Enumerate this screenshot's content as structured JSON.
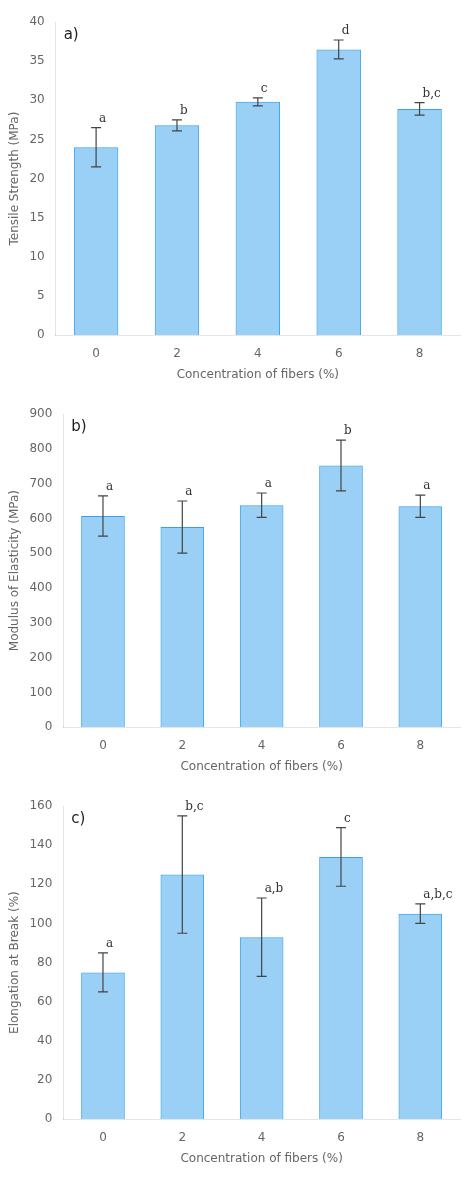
{
  "chart_data": [
    {
      "type": "bar",
      "title": "a)",
      "categories": [
        0,
        2,
        4,
        6,
        8
      ],
      "values": [
        24.0,
        26.8,
        29.8,
        36.5,
        28.9
      ],
      "errors": [
        2.5,
        0.7,
        0.5,
        1.2,
        0.8
      ],
      "annotations": [
        "a",
        "b",
        "c",
        "d",
        "b,c"
      ],
      "x_label": "Concentration of fibers (%)",
      "y_label": "Tensile Strength (MPa)",
      "ylim": [
        0,
        40
      ],
      "yticks": [
        0,
        5,
        10,
        15,
        20,
        25,
        30,
        35,
        40
      ],
      "grid": false
    },
    {
      "type": "bar",
      "title": "b)",
      "categories": [
        0,
        2,
        4,
        6,
        8
      ],
      "values": [
        607,
        575,
        638,
        752,
        635
      ],
      "errors": [
        58,
        75,
        35,
        73,
        32
      ],
      "annotations": [
        "a",
        "a",
        "a",
        "b",
        "a"
      ],
      "x_label": "Concentration of fibers (%)",
      "y_label": "Modulus of Elasticity (MPa)",
      "ylim": [
        0,
        900
      ],
      "yticks": [
        0,
        100,
        200,
        300,
        400,
        500,
        600,
        700,
        800,
        900
      ],
      "grid": false
    },
    {
      "type": "bar",
      "title": "c)",
      "categories": [
        0,
        2,
        4,
        6,
        8
      ],
      "values": [
        75,
        125,
        93,
        134,
        105
      ],
      "errors": [
        10,
        30,
        20,
        15,
        5
      ],
      "annotations": [
        "a",
        "b,c",
        "a,b",
        "c",
        "a,b,c"
      ],
      "x_label": "Concentration of fibers (%)",
      "y_label": "Elongation at Break (%)",
      "ylim": [
        0,
        160
      ],
      "yticks": [
        0,
        20,
        40,
        60,
        80,
        100,
        120,
        140,
        160
      ],
      "grid": false
    }
  ]
}
